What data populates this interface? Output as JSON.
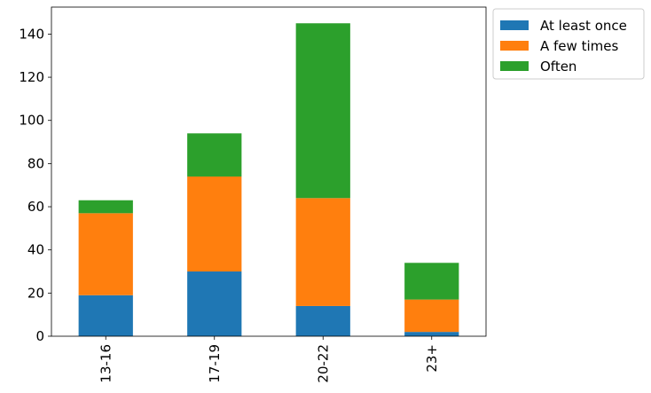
{
  "chart_data": {
    "type": "bar",
    "stacked": true,
    "categories": [
      "13-16",
      "17-19",
      "20-22",
      "23+"
    ],
    "series": [
      {
        "name": "At least once",
        "color": "#1f77b4",
        "values": [
          19,
          30,
          14,
          2
        ]
      },
      {
        "name": "A few times",
        "color": "#ff7f0e",
        "values": [
          38,
          44,
          50,
          15
        ]
      },
      {
        "name": "Often",
        "color": "#2ca02c",
        "values": [
          6,
          20,
          81,
          17
        ]
      }
    ],
    "title": "",
    "xlabel": "",
    "ylabel": "",
    "ylim": [
      0,
      152.5
    ],
    "yticks": [
      0,
      20,
      40,
      60,
      80,
      100,
      120,
      140
    ],
    "grid": false,
    "legend_position": "outside top-right",
    "xtick_rotation": "vertical"
  }
}
